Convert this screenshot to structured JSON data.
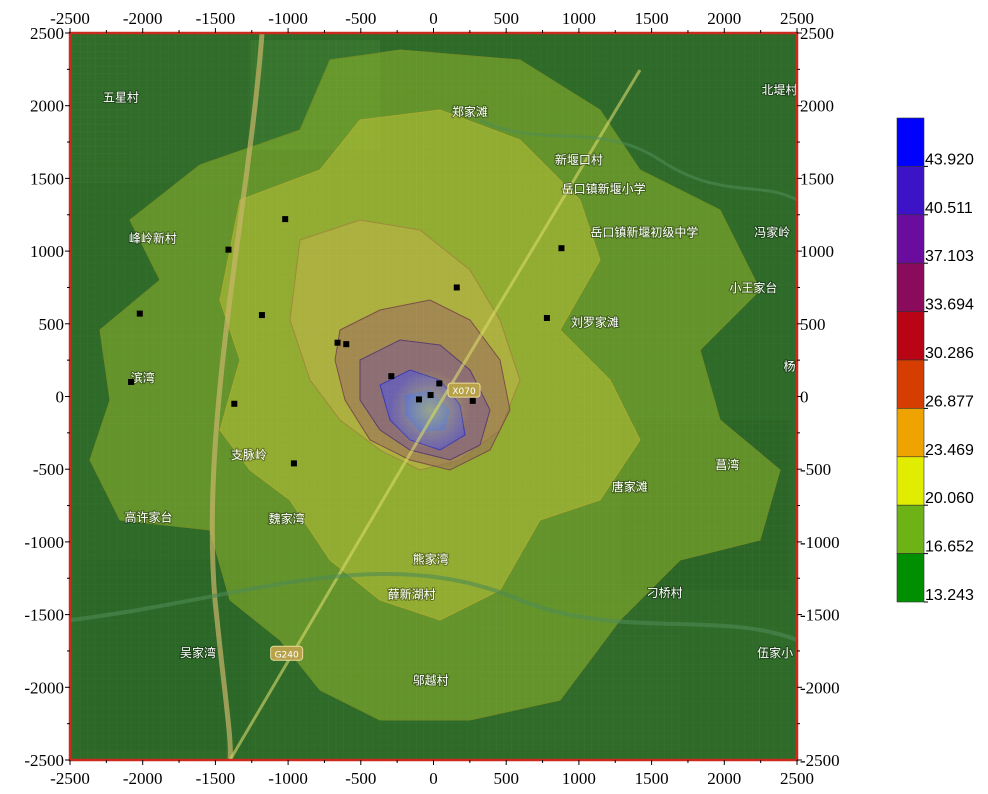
{
  "chart_data": {
    "type": "heatmap",
    "title": "",
    "xlabel": "",
    "ylabel": "",
    "xlim": [
      -2500,
      2500
    ],
    "ylim": [
      -2500,
      2500
    ],
    "x_ticks": [
      -2500,
      -2000,
      -1500,
      -1000,
      -500,
      0,
      500,
      1000,
      1500,
      2000,
      2500
    ],
    "y_ticks": [
      -2500,
      -2000,
      -1500,
      -1000,
      -500,
      0,
      500,
      1000,
      1500,
      2000,
      2500
    ],
    "grid": true,
    "legend_position": "right",
    "color_scale": {
      "labels": [
        "43.920",
        "40.511",
        "37.103",
        "33.694",
        "30.286",
        "26.877",
        "23.469",
        "20.060",
        "16.652",
        "13.243"
      ],
      "colors": [
        "#0000ff",
        "#3d13c8",
        "#6a0d9e",
        "#8a0a5c",
        "#b90416",
        "#d63d00",
        "#efa300",
        "#e0ec00",
        "#6db316",
        "#008f00"
      ]
    },
    "places": [
      {
        "name": "五星村",
        "x": -2150,
        "y": 2030
      },
      {
        "name": "郑家滩",
        "x": 250,
        "y": 1930
      },
      {
        "name": "北堤村",
        "x": 2380,
        "y": 2080
      },
      {
        "name": "新堰口村",
        "x": 1000,
        "y": 1600
      },
      {
        "name": "岳口镇新堰小学",
        "x": 1170,
        "y": 1400
      },
      {
        "name": "岳口镇新堰初级中学",
        "x": 1450,
        "y": 1100
      },
      {
        "name": "峰岭新村",
        "x": -1930,
        "y": 1060
      },
      {
        "name": "冯家岭",
        "x": 2330,
        "y": 1100
      },
      {
        "name": "小王家台",
        "x": 2200,
        "y": 720
      },
      {
        "name": "刘罗家滩",
        "x": 1110,
        "y": 480
      },
      {
        "name": "杨李",
        "x": 2490,
        "y": 180
      },
      {
        "name": "滨湾",
        "x": -2000,
        "y": 100
      },
      {
        "name": "支脉岭",
        "x": -1270,
        "y": -430
      },
      {
        "name": "菖湾",
        "x": 2020,
        "y": -500
      },
      {
        "name": "唐家滩",
        "x": 1350,
        "y": -650
      },
      {
        "name": "高许家台",
        "x": -1960,
        "y": -860
      },
      {
        "name": "魏家湾",
        "x": -1010,
        "y": -870
      },
      {
        "name": "熊家湾",
        "x": -20,
        "y": -1150
      },
      {
        "name": "薛新湖村",
        "x": -150,
        "y": -1390
      },
      {
        "name": "刁桥村",
        "x": 1590,
        "y": -1380
      },
      {
        "name": "吴家湾",
        "x": -1620,
        "y": -1790
      },
      {
        "name": "伍家小",
        "x": 2350,
        "y": -1790
      },
      {
        "name": "邬越村",
        "x": -20,
        "y": -1980
      }
    ],
    "road_labels": [
      {
        "name": "G240",
        "x": -1010,
        "y": -1780
      },
      {
        "name": "X070",
        "x": 210,
        "y": 30
      }
    ],
    "sources": [
      {
        "x": -1410,
        "y": 1010
      },
      {
        "x": -2020,
        "y": 570
      },
      {
        "x": -1180,
        "y": 560
      },
      {
        "x": -1020,
        "y": 1220
      },
      {
        "x": -660,
        "y": 370
      },
      {
        "x": -600,
        "y": 360
      },
      {
        "x": -290,
        "y": 140
      },
      {
        "x": -100,
        "y": -20
      },
      {
        "x": -20,
        "y": 10
      },
      {
        "x": 40,
        "y": 90
      },
      {
        "x": 160,
        "y": 750
      },
      {
        "x": 270,
        "y": -30
      },
      {
        "x": 780,
        "y": 540
      },
      {
        "x": 880,
        "y": 1020
      },
      {
        "x": -1370,
        "y": -50
      },
      {
        "x": -960,
        "y": -460
      },
      {
        "x": -2080,
        "y": 100
      }
    ]
  }
}
